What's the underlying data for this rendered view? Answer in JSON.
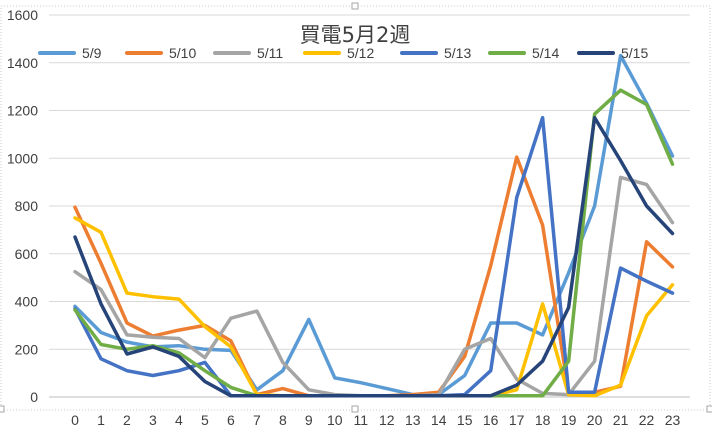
{
  "chart_data": {
    "type": "line",
    "title": "買電5月2週",
    "xlabel": "",
    "ylabel": "",
    "ylim": [
      0,
      1600
    ],
    "yticks": [
      "0",
      "200",
      "400",
      "600",
      "800",
      "1000",
      "1200",
      "1400",
      "1600"
    ],
    "categories": [
      "0",
      "1",
      "2",
      "3",
      "4",
      "5",
      "6",
      "7",
      "8",
      "9",
      "10",
      "11",
      "12",
      "13",
      "14",
      "15",
      "16",
      "17",
      "18",
      "19",
      "20",
      "21",
      "22",
      "23"
    ],
    "grid": "horizontal",
    "legend": "top",
    "series": [
      {
        "name": "5/9",
        "color": "#5b9bd5",
        "values": [
          380,
          270,
          230,
          210,
          215,
          200,
          195,
          30,
          110,
          325,
          80,
          60,
          35,
          10,
          10,
          90,
          310,
          310,
          260,
          520,
          800,
          1430,
          1230,
          1010
        ]
      },
      {
        "name": "5/10",
        "color": "#ed7d31",
        "values": [
          795,
          560,
          310,
          255,
          280,
          300,
          235,
          10,
          35,
          5,
          5,
          5,
          5,
          10,
          20,
          170,
          550,
          1005,
          720,
          20,
          20,
          45,
          650,
          545
        ]
      },
      {
        "name": "5/11",
        "color": "#a5a5a5",
        "values": [
          525,
          450,
          260,
          250,
          245,
          165,
          330,
          360,
          145,
          30,
          10,
          5,
          5,
          5,
          10,
          200,
          245,
          75,
          15,
          10,
          150,
          920,
          890,
          730
        ]
      },
      {
        "name": "5/12",
        "color": "#ffc000",
        "values": [
          750,
          690,
          435,
          420,
          410,
          295,
          210,
          10,
          5,
          5,
          5,
          5,
          5,
          5,
          5,
          5,
          5,
          30,
          390,
          10,
          5,
          50,
          340,
          470
        ]
      },
      {
        "name": "5/13",
        "color": "#4472c4",
        "values": [
          370,
          160,
          110,
          90,
          110,
          145,
          5,
          5,
          5,
          5,
          5,
          5,
          5,
          5,
          5,
          10,
          110,
          835,
          1170,
          20,
          20,
          540,
          485,
          435
        ]
      },
      {
        "name": "5/14",
        "color": "#70ad47",
        "values": [
          365,
          220,
          200,
          215,
          185,
          110,
          40,
          5,
          5,
          5,
          5,
          5,
          5,
          5,
          5,
          5,
          5,
          5,
          5,
          150,
          1185,
          1285,
          1225,
          975
        ]
      },
      {
        "name": "5/15",
        "color": "#264478",
        "values": [
          670,
          390,
          180,
          210,
          170,
          65,
          5,
          5,
          5,
          5,
          5,
          5,
          5,
          5,
          5,
          5,
          5,
          50,
          150,
          375,
          1170,
          990,
          800,
          685
        ]
      }
    ]
  }
}
